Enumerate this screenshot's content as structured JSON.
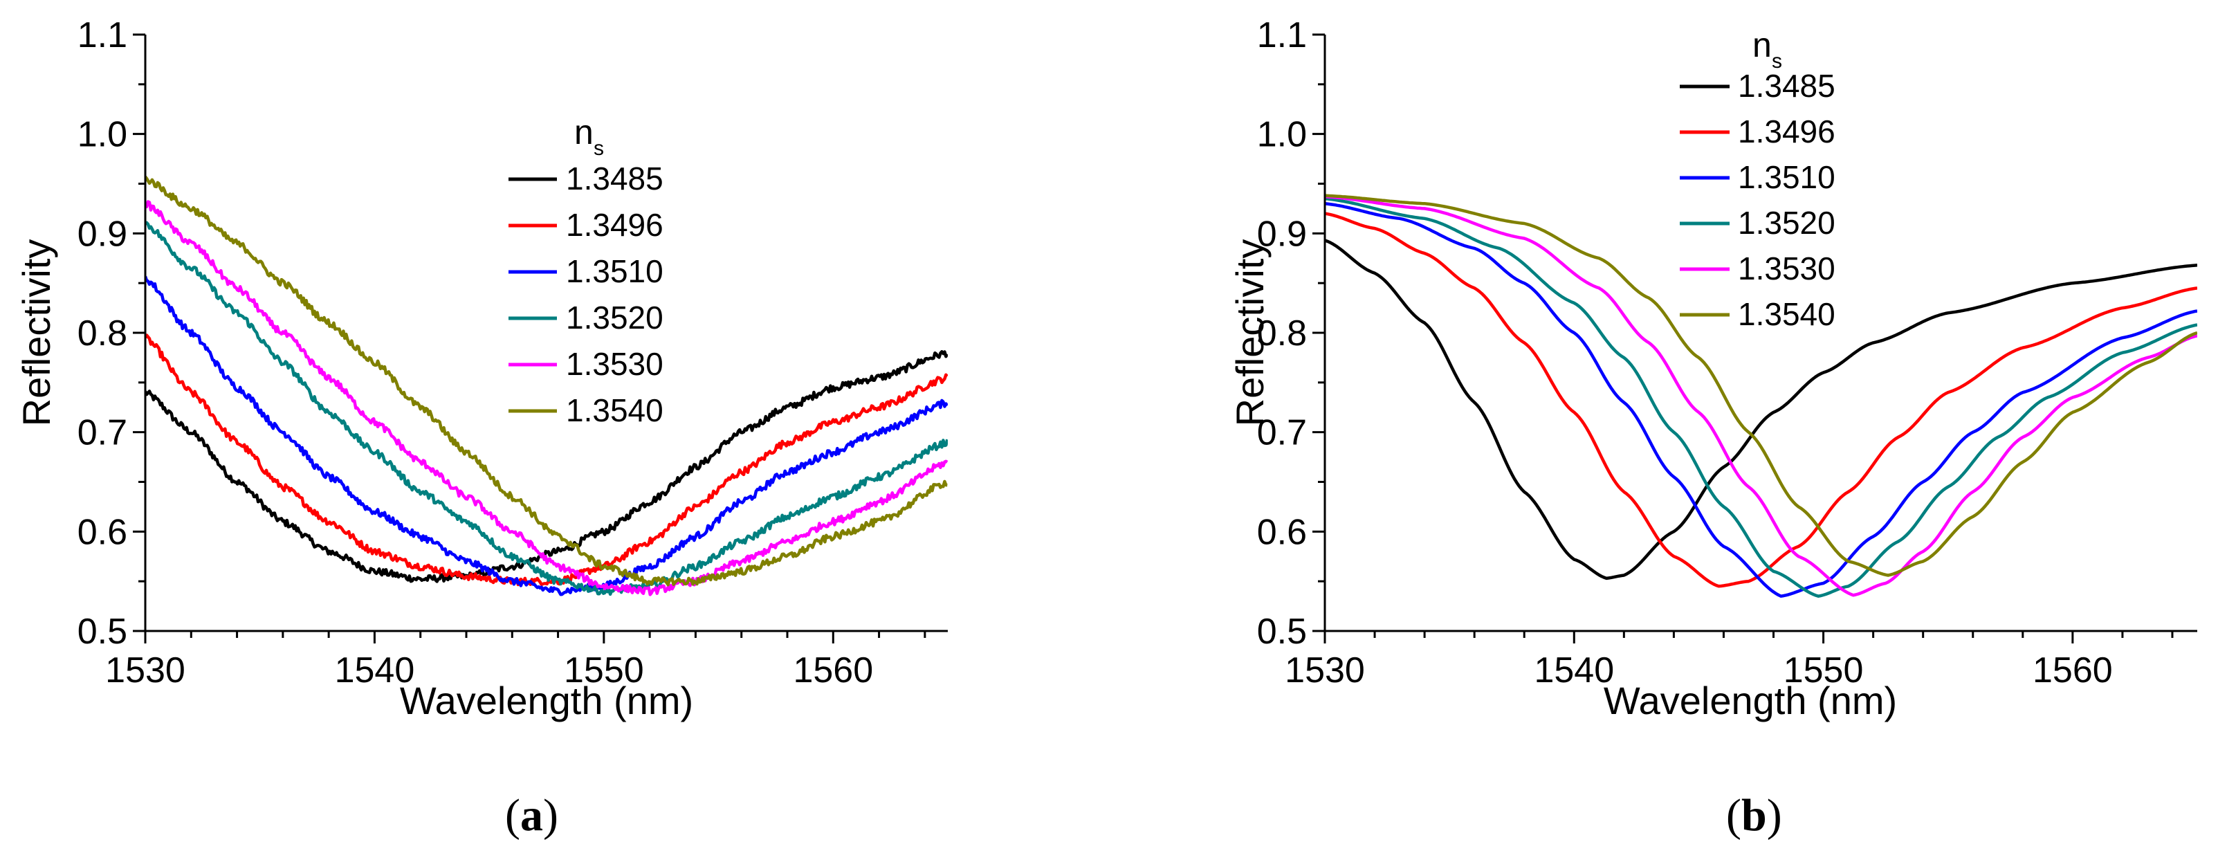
{
  "chart_data": [
    {
      "type": "line",
      "panel": "a",
      "caption_open": "(",
      "caption_letter": "a",
      "caption_close": ")",
      "xlabel": "Wavelength (nm)",
      "ylabel": "Reflectivity",
      "xlim": [
        1530,
        1565
      ],
      "ylim": [
        0.5,
        1.1
      ],
      "x_ticks": [
        1530,
        1540,
        1550,
        1560
      ],
      "y_ticks": [
        0.5,
        0.6,
        0.7,
        0.8,
        0.9,
        1.0,
        1.1
      ],
      "x_tick_labels": [
        "1530",
        "1540",
        "1550",
        "1560"
      ],
      "y_tick_labels": [
        "0.5",
        "0.6",
        "0.7",
        "0.8",
        "0.9",
        "1.0",
        "1.1"
      ],
      "legend_title": "n",
      "legend_title_sub": "s",
      "legend_position": "top-right",
      "noisy": true,
      "series": [
        {
          "name": "1.3485",
          "color": "#000000",
          "points": [
            [
              1530,
              0.74
            ],
            [
              1532,
              0.7
            ],
            [
              1534,
              0.65
            ],
            [
              1536,
              0.61
            ],
            [
              1538,
              0.58
            ],
            [
              1540,
              0.56
            ],
            [
              1542,
              0.552
            ],
            [
              1544,
              0.555
            ],
            [
              1546,
              0.565
            ],
            [
              1548,
              0.58
            ],
            [
              1550,
              0.6
            ],
            [
              1552,
              0.63
            ],
            [
              1554,
              0.665
            ],
            [
              1556,
              0.7
            ],
            [
              1558,
              0.725
            ],
            [
              1560,
              0.745
            ],
            [
              1562,
              0.755
            ],
            [
              1565,
              0.78
            ]
          ]
        },
        {
          "name": "1.3496",
          "color": "#ff0000",
          "points": [
            [
              1530,
              0.795
            ],
            [
              1532,
              0.74
            ],
            [
              1534,
              0.69
            ],
            [
              1536,
              0.645
            ],
            [
              1538,
              0.61
            ],
            [
              1540,
              0.58
            ],
            [
              1542,
              0.565
            ],
            [
              1544,
              0.555
            ],
            [
              1546,
              0.55
            ],
            [
              1548,
              0.55
            ],
            [
              1550,
              0.565
            ],
            [
              1552,
              0.59
            ],
            [
              1554,
              0.625
            ],
            [
              1556,
              0.66
            ],
            [
              1558,
              0.69
            ],
            [
              1560,
              0.71
            ],
            [
              1562,
              0.725
            ],
            [
              1565,
              0.755
            ]
          ]
        },
        {
          "name": "1.3510",
          "color": "#0000ff",
          "points": [
            [
              1530,
              0.855
            ],
            [
              1532,
              0.8
            ],
            [
              1534,
              0.745
            ],
            [
              1536,
              0.7
            ],
            [
              1538,
              0.655
            ],
            [
              1540,
              0.62
            ],
            [
              1542,
              0.595
            ],
            [
              1544,
              0.57
            ],
            [
              1546,
              0.55
            ],
            [
              1548,
              0.54
            ],
            [
              1550,
              0.545
            ],
            [
              1552,
              0.565
            ],
            [
              1554,
              0.595
            ],
            [
              1556,
              0.63
            ],
            [
              1558,
              0.66
            ],
            [
              1560,
              0.68
            ],
            [
              1562,
              0.7
            ],
            [
              1565,
              0.73
            ]
          ]
        },
        {
          "name": "1.3520",
          "color": "#008080",
          "points": [
            [
              1530,
              0.91
            ],
            [
              1532,
              0.865
            ],
            [
              1534,
              0.82
            ],
            [
              1536,
              0.77
            ],
            [
              1538,
              0.72
            ],
            [
              1540,
              0.68
            ],
            [
              1542,
              0.64
            ],
            [
              1544,
              0.61
            ],
            [
              1546,
              0.575
            ],
            [
              1548,
              0.55
            ],
            [
              1550,
              0.54
            ],
            [
              1552,
              0.545
            ],
            [
              1554,
              0.565
            ],
            [
              1556,
              0.59
            ],
            [
              1558,
              0.615
            ],
            [
              1560,
              0.635
            ],
            [
              1562,
              0.655
            ],
            [
              1565,
              0.69
            ]
          ]
        },
        {
          "name": "1.3530",
          "color": "#ff00ff",
          "points": [
            [
              1530,
              0.93
            ],
            [
              1532,
              0.89
            ],
            [
              1534,
              0.845
            ],
            [
              1536,
              0.8
            ],
            [
              1538,
              0.755
            ],
            [
              1540,
              0.71
            ],
            [
              1542,
              0.67
            ],
            [
              1544,
              0.635
            ],
            [
              1546,
              0.6
            ],
            [
              1548,
              0.565
            ],
            [
              1550,
              0.545
            ],
            [
              1552,
              0.54
            ],
            [
              1554,
              0.55
            ],
            [
              1556,
              0.57
            ],
            [
              1558,
              0.59
            ],
            [
              1560,
              0.61
            ],
            [
              1562,
              0.63
            ],
            [
              1565,
              0.67
            ]
          ]
        },
        {
          "name": "1.3540",
          "color": "#808000",
          "points": [
            [
              1530,
              0.955
            ],
            [
              1532,
              0.925
            ],
            [
              1534,
              0.89
            ],
            [
              1536,
              0.85
            ],
            [
              1538,
              0.81
            ],
            [
              1540,
              0.77
            ],
            [
              1542,
              0.725
            ],
            [
              1544,
              0.68
            ],
            [
              1546,
              0.635
            ],
            [
              1548,
              0.595
            ],
            [
              1550,
              0.565
            ],
            [
              1552,
              0.55
            ],
            [
              1554,
              0.55
            ],
            [
              1556,
              0.56
            ],
            [
              1558,
              0.575
            ],
            [
              1560,
              0.595
            ],
            [
              1562,
              0.61
            ],
            [
              1565,
              0.65
            ]
          ]
        }
      ]
    },
    {
      "type": "line",
      "panel": "b",
      "caption_open": "(",
      "caption_letter": "b",
      "caption_close": ")",
      "xlabel": "Wavelength (nm)",
      "ylabel": "Reflectivity",
      "xlim": [
        1530,
        1565
      ],
      "ylim": [
        0.5,
        1.1
      ],
      "x_ticks": [
        1530,
        1540,
        1550,
        1560
      ],
      "y_ticks": [
        0.5,
        0.6,
        0.7,
        0.8,
        0.9,
        1.0,
        1.1
      ],
      "x_tick_labels": [
        "1530",
        "1540",
        "1550",
        "1560"
      ],
      "y_tick_labels": [
        "0.5",
        "0.6",
        "0.7",
        "0.8",
        "0.9",
        "1.0",
        "1.1"
      ],
      "legend_title": "n",
      "legend_title_sub": "s",
      "legend_position": "top-center",
      "noisy": false,
      "series": [
        {
          "name": "1.3485",
          "color": "#000000",
          "points": [
            [
              1530,
              0.893
            ],
            [
              1532,
              0.86
            ],
            [
              1534,
              0.81
            ],
            [
              1536,
              0.73
            ],
            [
              1538,
              0.64
            ],
            [
              1540,
              0.572
            ],
            [
              1541.3,
              0.553
            ],
            [
              1542,
              0.556
            ],
            [
              1544,
              0.6
            ],
            [
              1546,
              0.665
            ],
            [
              1548,
              0.72
            ],
            [
              1550,
              0.76
            ],
            [
              1552,
              0.79
            ],
            [
              1555,
              0.82
            ],
            [
              1560,
              0.85
            ],
            [
              1565,
              0.868
            ]
          ]
        },
        {
          "name": "1.3496",
          "color": "#ff0000",
          "points": [
            [
              1530,
              0.92
            ],
            [
              1532,
              0.905
            ],
            [
              1534,
              0.88
            ],
            [
              1536,
              0.845
            ],
            [
              1538,
              0.79
            ],
            [
              1540,
              0.72
            ],
            [
              1542,
              0.64
            ],
            [
              1544,
              0.575
            ],
            [
              1545.8,
              0.545
            ],
            [
              1547,
              0.55
            ],
            [
              1549,
              0.585
            ],
            [
              1551,
              0.64
            ],
            [
              1553,
              0.695
            ],
            [
              1555,
              0.74
            ],
            [
              1558,
              0.785
            ],
            [
              1562,
              0.825
            ],
            [
              1565,
              0.845
            ]
          ]
        },
        {
          "name": "1.3510",
          "color": "#0000ff",
          "points": [
            [
              1530,
              0.93
            ],
            [
              1533,
              0.915
            ],
            [
              1536,
              0.885
            ],
            [
              1538,
              0.85
            ],
            [
              1540,
              0.8
            ],
            [
              1542,
              0.73
            ],
            [
              1544,
              0.655
            ],
            [
              1546,
              0.585
            ],
            [
              1548.3,
              0.535
            ],
            [
              1550,
              0.548
            ],
            [
              1552,
              0.595
            ],
            [
              1554,
              0.65
            ],
            [
              1556,
              0.7
            ],
            [
              1558,
              0.74
            ],
            [
              1562,
              0.795
            ],
            [
              1565,
              0.822
            ]
          ]
        },
        {
          "name": "1.3520",
          "color": "#008080",
          "points": [
            [
              1530,
              0.935
            ],
            [
              1534,
              0.915
            ],
            [
              1537,
              0.885
            ],
            [
              1540,
              0.83
            ],
            [
              1542,
              0.775
            ],
            [
              1544,
              0.7
            ],
            [
              1546,
              0.625
            ],
            [
              1548,
              0.56
            ],
            [
              1549.8,
              0.535
            ],
            [
              1551,
              0.545
            ],
            [
              1553,
              0.59
            ],
            [
              1555,
              0.645
            ],
            [
              1557,
              0.695
            ],
            [
              1559,
              0.735
            ],
            [
              1562,
              0.78
            ],
            [
              1565,
              0.808
            ]
          ]
        },
        {
          "name": "1.3530",
          "color": "#ff00ff",
          "points": [
            [
              1530,
              0.937
            ],
            [
              1534,
              0.925
            ],
            [
              1538,
              0.895
            ],
            [
              1541,
              0.845
            ],
            [
              1543,
              0.79
            ],
            [
              1545,
              0.72
            ],
            [
              1547,
              0.645
            ],
            [
              1549,
              0.575
            ],
            [
              1551.2,
              0.536
            ],
            [
              1552.5,
              0.548
            ],
            [
              1554,
              0.58
            ],
            [
              1556,
              0.64
            ],
            [
              1558,
              0.695
            ],
            [
              1560,
              0.735
            ],
            [
              1563,
              0.775
            ],
            [
              1565,
              0.797
            ]
          ]
        },
        {
          "name": "1.3540",
          "color": "#808000",
          "points": [
            [
              1530,
              0.938
            ],
            [
              1534,
              0.93
            ],
            [
              1538,
              0.91
            ],
            [
              1541,
              0.875
            ],
            [
              1543,
              0.835
            ],
            [
              1545,
              0.775
            ],
            [
              1547,
              0.7
            ],
            [
              1549,
              0.625
            ],
            [
              1551,
              0.57
            ],
            [
              1552.6,
              0.556
            ],
            [
              1554,
              0.57
            ],
            [
              1556,
              0.615
            ],
            [
              1558,
              0.67
            ],
            [
              1560,
              0.72
            ],
            [
              1563,
              0.77
            ],
            [
              1565,
              0.8
            ]
          ]
        }
      ]
    }
  ]
}
